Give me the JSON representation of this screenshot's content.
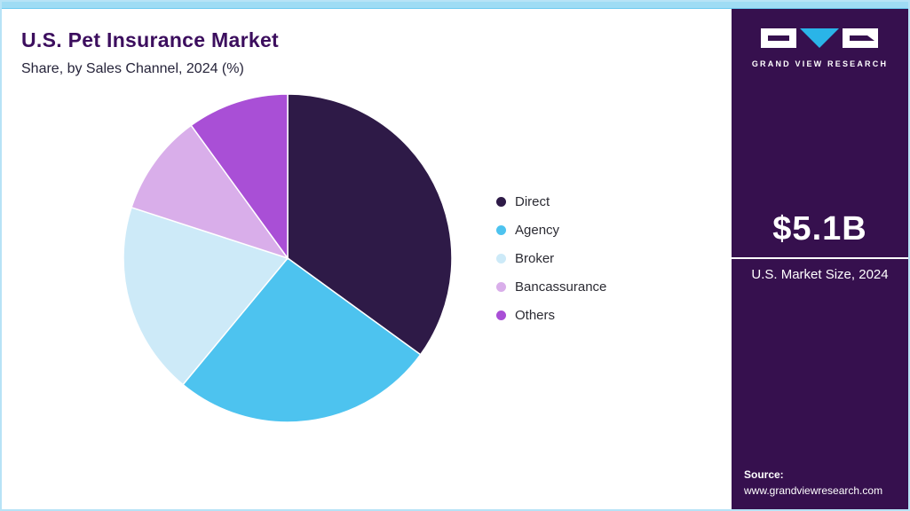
{
  "header": {
    "title": "U.S. Pet Insurance Market",
    "subtitle": "Share, by Sales Channel, 2024 (%)"
  },
  "chart_data": {
    "type": "pie",
    "title": "U.S. Pet Insurance Market Share, by Sales Channel, 2024 (%)",
    "start_angle_deg": 0,
    "direction": "clockwise",
    "legend_position": "right",
    "segments": [
      {
        "label": "Direct",
        "value": 35,
        "color": "#2e1a47"
      },
      {
        "label": "Agency",
        "value": 26,
        "color": "#4dc3ef"
      },
      {
        "label": "Broker",
        "value": 19,
        "color": "#cdeaf8"
      },
      {
        "label": "Bancassurance",
        "value": 10,
        "color": "#d9aeea"
      },
      {
        "label": "Others",
        "value": 10,
        "color": "#a94fd6"
      }
    ]
  },
  "sidebar": {
    "brand": "GRAND VIEW RESEARCH",
    "market_size": "$5.1B",
    "market_size_label": "U.S. Market Size, 2024",
    "source_label": "Source:",
    "source_url": "www.grandviewresearch.com",
    "background_color": "#36104e",
    "accent_bar_color": "#9fdcf4",
    "logo_colors": {
      "box": "#ffffff",
      "v_triangle": "#2ab4e8",
      "mark": "#36104e"
    }
  }
}
